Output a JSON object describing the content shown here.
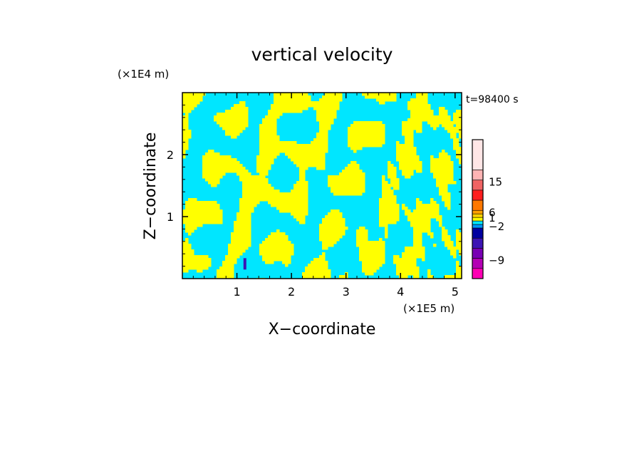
{
  "chart_data": {
    "type": "heatmap",
    "title": "vertical velocity",
    "xlabel": "X−coordinate",
    "ylabel": "Z−coordinate",
    "x_unit": "(×1E5 m)",
    "y_unit": "(×1E4 m)",
    "time_label": "t=98400 s",
    "x_ticks": [
      1,
      2,
      3,
      4,
      5
    ],
    "x_tick_labels": [
      "1",
      "2",
      "3",
      "4",
      "5"
    ],
    "y_ticks": [
      1,
      2
    ],
    "y_tick_labels": [
      "1",
      "2"
    ],
    "xlim": [
      0,
      5.12
    ],
    "ylim": [
      0,
      3.0
    ],
    "dominant_colors": {
      "positive": "#ffff00",
      "negative": "#00e6ff",
      "strong_negative": "#3c14b4"
    },
    "colorbar": {
      "tick_labels": [
        "15",
        "6",
        "1",
        "−2",
        "−9"
      ],
      "colors_top_to_bottom": [
        "#ffe6e6",
        "#ffb4b4",
        "#f06464",
        "#ff1e1e",
        "#ff7800",
        "#ffa000",
        "#ffd200",
        "#ffff00",
        "#00e6ff",
        "#0096ff",
        "#0000a0",
        "#3c14b4",
        "#7800b4",
        "#b400b4",
        "#ff00b4"
      ]
    }
  }
}
